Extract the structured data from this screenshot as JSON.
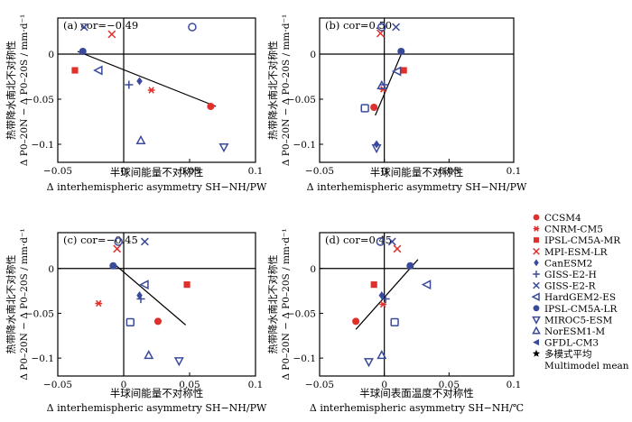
{
  "legend": {
    "position": "right",
    "entries": [
      {
        "label": "CCSM4",
        "marker": "filled-circle",
        "color": "#e0302c"
      },
      {
        "label": "CNRM-CM5",
        "marker": "asterisk",
        "color": "#e0302c"
      },
      {
        "label": "IPSL-CM5A-MR",
        "marker": "filled-square",
        "color": "#e0302c"
      },
      {
        "label": "MPI-ESM-LR",
        "marker": "cross",
        "color": "#e0302c"
      },
      {
        "label": "CanESM2",
        "marker": "diamond",
        "color": "#3a4a9a"
      },
      {
        "label": "GISS-E2-H",
        "marker": "plus",
        "color": "#3a4a9a"
      },
      {
        "label": "GISS-E2-R",
        "marker": "cross",
        "color": "#3a4a9a"
      },
      {
        "label": "HardGEM2-ES",
        "marker": "open-triangle-left",
        "color": "#3a4a9a"
      },
      {
        "label": "IPSL-CM5A-LR",
        "marker": "filled-circle",
        "color": "#3a4a9a"
      },
      {
        "label": "MIROC5-ESM",
        "marker": "open-triangle-down",
        "color": "#3a4a9a"
      },
      {
        "label": "NorESM1-M",
        "marker": "open-triangle-up",
        "color": "#3a4a9a"
      },
      {
        "label": "GFDL-CM3",
        "marker": "filled-triangle-left",
        "color": "#3a4a9a"
      },
      {
        "label": "多模式平均",
        "marker": "star",
        "color": "#000000"
      },
      {
        "label": "Multimodel mean",
        "marker": "",
        "color": "#000000"
      }
    ]
  },
  "chart_data": [
    {
      "type": "scatter",
      "title": "(a) cor=−0.49",
      "xlabel_cn": "半球间能量不对称性",
      "xlabel_en": "Δ interhemispheric asymmetry SH−NH/PW",
      "ylabel_cn": "热带降水南北不对称性",
      "ylabel_en": "Δ P0–20N − Δ P0–20S / mm·d⁻¹",
      "xlim": [
        -0.05,
        0.1
      ],
      "ylim": [
        -0.12,
        0.04
      ],
      "xticks": [
        "−0.05",
        "0",
        "0.05",
        "0.1"
      ],
      "yticks": [
        "0",
        "−0.05",
        "−0.1"
      ],
      "fit_line": {
        "x": [
          -0.035,
          0.07
        ],
        "y": [
          0.003,
          -0.058
        ]
      },
      "points": [
        {
          "model": "CCSM4",
          "x": 0.066,
          "y": -0.058
        },
        {
          "model": "CNRM-CM5",
          "x": 0.021,
          "y": -0.04
        },
        {
          "model": "IPSL-CM5A-MR",
          "x": -0.037,
          "y": -0.018
        },
        {
          "model": "MPI-ESM-LR",
          "x": -0.009,
          "y": 0.022
        },
        {
          "model": "CanESM2",
          "x": 0.012,
          "y": -0.03
        },
        {
          "model": "GISS-E2-H",
          "x": 0.004,
          "y": -0.034
        },
        {
          "model": "GISS-E2-R",
          "x": -0.03,
          "y": 0.03
        },
        {
          "model": "HardGEM2-ES",
          "x": -0.019,
          "y": -0.018
        },
        {
          "model": "IPSL-CM5A-LR",
          "x": -0.031,
          "y": 0.003
        },
        {
          "model": "MIROC5-ESM",
          "x": 0.076,
          "y": -0.103
        },
        {
          "model": "NorESM1-M",
          "x": 0.013,
          "y": -0.096
        },
        {
          "model": "GFDL-CM3",
          "x": 0.052,
          "y": 0.03
        },
        {
          "model": "Multimodel mean",
          "x": 0.012,
          "y": -0.029
        }
      ]
    },
    {
      "type": "scatter",
      "title": "(b) cor=0.50",
      "xlabel_cn": "半球间能量不对称性",
      "xlabel_en": "Δ interhemispheric asymmetry SH−NH/PW",
      "ylabel_cn": "热带降水南北不对称性",
      "ylabel_en": "Δ P0–20N − Δ P0–20S / mm·d⁻¹",
      "xlim": [
        -0.05,
        0.1
      ],
      "ylim": [
        -0.12,
        0.04
      ],
      "xticks": [
        "−0.05",
        "0",
        "0.05",
        "0.1"
      ],
      "yticks": [
        "0",
        "−0.05",
        "−0.1"
      ],
      "fit_line": {
        "x": [
          -0.007,
          0.014
        ],
        "y": [
          -0.068,
          0.003
        ]
      },
      "points": [
        {
          "model": "CCSM4",
          "x": -0.008,
          "y": -0.059
        },
        {
          "model": "CNRM-CM5",
          "x": -0.001,
          "y": -0.039
        },
        {
          "model": "IPSL-CM5A-MR",
          "x": 0.015,
          "y": -0.018
        },
        {
          "model": "MPI-ESM-LR",
          "x": -0.003,
          "y": 0.023
        },
        {
          "model": "CanESM2",
          "x": -0.006,
          "y": -0.1
        },
        {
          "model": "GISS-E2-H",
          "x": 0.0,
          "y": -0.034
        },
        {
          "model": "GISS-E2-R",
          "x": 0.009,
          "y": 0.03
        },
        {
          "model": "HardGEM2-ES",
          "x": 0.01,
          "y": -0.019
        },
        {
          "model": "IPSL-CM5A-LR",
          "x": 0.013,
          "y": 0.003
        },
        {
          "model": "MIROC5-ESM",
          "x": -0.006,
          "y": -0.104
        },
        {
          "model": "NorESM1-M",
          "x": -0.002,
          "y": -0.035
        },
        {
          "model": "GFDL-CM3",
          "x": -0.002,
          "y": 0.03
        },
        {
          "model": "GFDL-CM3",
          "x": -0.015,
          "y": -0.06
        },
        {
          "model": "Multimodel mean",
          "x": 0.0,
          "y": -0.031
        }
      ]
    },
    {
      "type": "scatter",
      "title": "(c) cor=−0.45",
      "xlabel_cn": "半球间能量不对称性",
      "xlabel_en": "Δ interhemispheric asymmetry SH−NH/PW",
      "ylabel_cn": "热带降水南北不对称性",
      "ylabel_en": "Δ P0–20N − Δ P0–20S / mm·d⁻¹",
      "xlim": [
        -0.05,
        0.1
      ],
      "ylim": [
        -0.12,
        0.04
      ],
      "xticks": [
        "−0.05",
        "0",
        "0.05",
        "0.1"
      ],
      "yticks": [
        "0",
        "−0.05",
        "−0.1"
      ],
      "fit_line": {
        "x": [
          -0.008,
          0.047
        ],
        "y": [
          0.006,
          -0.063
        ]
      },
      "points": [
        {
          "model": "CCSM4",
          "x": 0.026,
          "y": -0.059
        },
        {
          "model": "CNRM-CM5",
          "x": -0.019,
          "y": -0.039
        },
        {
          "model": "IPSL-CM5A-MR",
          "x": 0.048,
          "y": -0.018
        },
        {
          "model": "MPI-ESM-LR",
          "x": -0.005,
          "y": 0.022
        },
        {
          "model": "CanESM2",
          "x": 0.012,
          "y": -0.03
        },
        {
          "model": "GISS-E2-H",
          "x": 0.013,
          "y": -0.034
        },
        {
          "model": "GISS-E2-R",
          "x": 0.016,
          "y": 0.03
        },
        {
          "model": "HardGEM2-ES",
          "x": 0.016,
          "y": -0.018
        },
        {
          "model": "IPSL-CM5A-LR",
          "x": -0.008,
          "y": 0.003
        },
        {
          "model": "MIROC5-ESM",
          "x": 0.042,
          "y": -0.103
        },
        {
          "model": "NorESM1-M",
          "x": 0.019,
          "y": -0.097
        },
        {
          "model": "GFDL-CM3",
          "x": -0.004,
          "y": 0.03
        },
        {
          "model": "GFDL-CM3",
          "x": 0.005,
          "y": -0.06
        },
        {
          "model": "Multimodel mean",
          "x": 0.012,
          "y": -0.029
        }
      ]
    },
    {
      "type": "scatter",
      "title": "(d) cor=0.45",
      "xlabel_cn": "半球间表面温度不对称性",
      "xlabel_en": "Δ interhemispheric asymmetry SH−NH/℃",
      "ylabel_cn": "热带降水南北不对称性",
      "ylabel_en": "Δ P0–20N − Δ P0–20S / mm·d⁻¹",
      "xlim": [
        -0.05,
        0.1
      ],
      "ylim": [
        -0.12,
        0.04
      ],
      "xticks": [
        "−0.05",
        "0",
        "0.05",
        "0.1"
      ],
      "yticks": [
        "0",
        "−0.05",
        "−0.1"
      ],
      "fit_line": {
        "x": [
          -0.022,
          0.026
        ],
        "y": [
          -0.068,
          0.01
        ]
      },
      "points": [
        {
          "model": "CCSM4",
          "x": -0.022,
          "y": -0.059
        },
        {
          "model": "CNRM-CM5",
          "x": -0.001,
          "y": -0.04
        },
        {
          "model": "IPSL-CM5A-MR",
          "x": -0.008,
          "y": -0.018
        },
        {
          "model": "MPI-ESM-LR",
          "x": 0.01,
          "y": 0.022
        },
        {
          "model": "CanESM2",
          "x": -0.002,
          "y": -0.03
        },
        {
          "model": "GISS-E2-H",
          "x": 0.001,
          "y": -0.034
        },
        {
          "model": "GISS-E2-R",
          "x": 0.006,
          "y": 0.03
        },
        {
          "model": "HardGEM2-ES",
          "x": 0.033,
          "y": -0.018
        },
        {
          "model": "IPSL-CM5A-LR",
          "x": 0.02,
          "y": 0.003
        },
        {
          "model": "MIROC5-ESM",
          "x": -0.012,
          "y": -0.104
        },
        {
          "model": "NorESM1-M",
          "x": -0.002,
          "y": -0.097
        },
        {
          "model": "GFDL-CM3",
          "x": -0.003,
          "y": 0.03
        },
        {
          "model": "GFDL-CM3",
          "x": 0.008,
          "y": -0.06
        },
        {
          "model": "Multimodel mean",
          "x": -0.001,
          "y": -0.029
        }
      ]
    }
  ]
}
